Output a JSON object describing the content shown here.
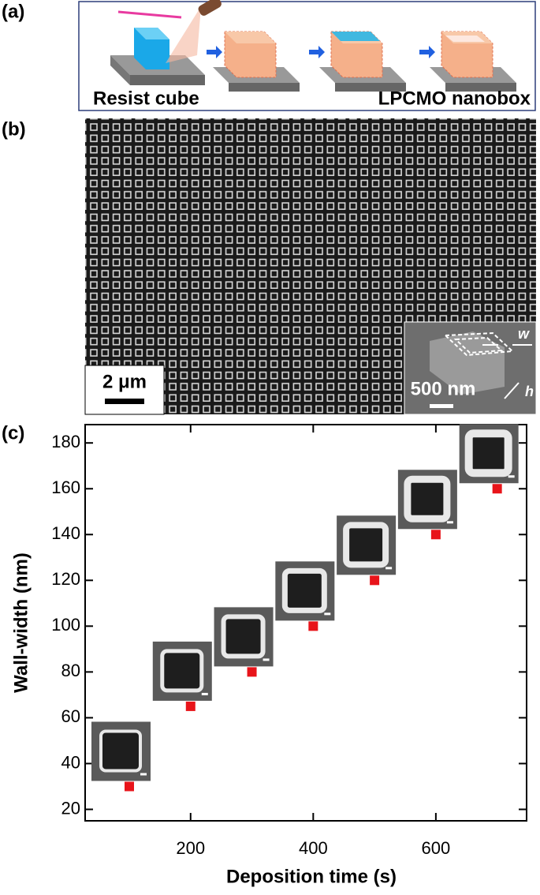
{
  "panels": {
    "a": {
      "label": "(a)",
      "left_caption": "Resist cube",
      "right_caption": "LPCMO nanobox"
    },
    "b": {
      "label": "(b)",
      "scale_bar": "2 μm",
      "inset_scale_bar": "500 nm",
      "inset_w": "w",
      "inset_h": "h"
    },
    "c": {
      "label": "(c)"
    }
  },
  "chart_data": {
    "type": "scatter",
    "xlabel": "Deposition time (s)",
    "ylabel": "Wall-width (nm)",
    "x": [
      100,
      200,
      300,
      400,
      500,
      600,
      700
    ],
    "values": [
      30,
      65,
      80,
      100,
      120,
      140,
      160
    ],
    "color": "#e8141a",
    "xlim": [
      28,
      748
    ],
    "ylim": [
      15,
      188
    ],
    "xticks": [
      200,
      400,
      600
    ],
    "yticks": [
      20,
      40,
      60,
      80,
      100,
      120,
      140,
      160,
      180
    ]
  }
}
